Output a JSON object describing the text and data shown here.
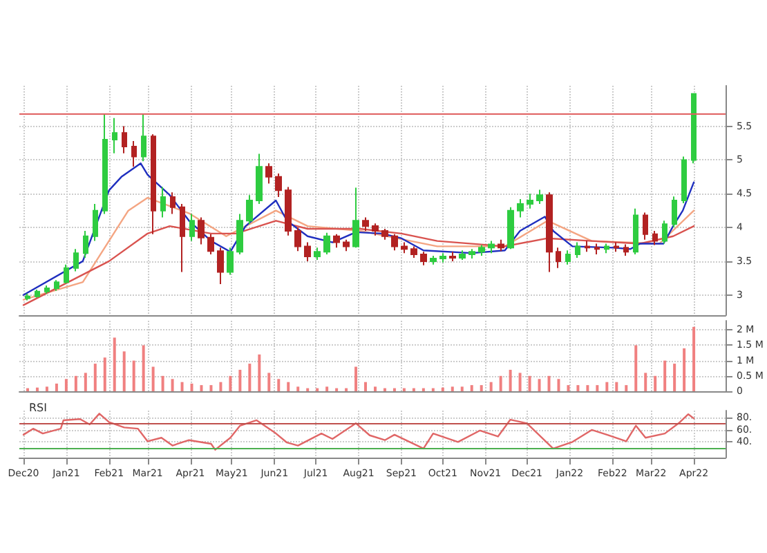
{
  "chart_data": [
    {
      "type": "candlestick",
      "xlim": [
        "2020-11-28",
        "2022-04-24"
      ],
      "ylim": [
        2.7,
        6.1
      ],
      "yticks": [
        3,
        3.5,
        4,
        4.5,
        5,
        5.5
      ],
      "tick_labels": "y",
      "grid": true,
      "marker": "none",
      "xticks": [
        {
          "value": "2020-12-01",
          "label": null
        },
        {
          "value": "2021-01-01",
          "label": null
        },
        {
          "value": "2021-02-01",
          "label": null
        },
        {
          "value": "2021-03-01",
          "label": null
        },
        {
          "value": "2021-04-01",
          "label": null
        },
        {
          "value": "2021-05-01",
          "label": null
        },
        {
          "value": "2021-06-01",
          "label": null
        },
        {
          "value": "2021-07-01",
          "label": null
        },
        {
          "value": "2021-08-01",
          "label": null
        },
        {
          "value": "2021-09-01",
          "label": null
        },
        {
          "value": "2021-10-01",
          "label": null
        },
        {
          "value": "2021-11-01",
          "label": null
        },
        {
          "value": "2021-12-01",
          "label": null
        },
        {
          "value": "2022-01-01",
          "label": null
        },
        {
          "value": "2022-02-01",
          "label": null
        },
        {
          "value": "2022-03-01",
          "label": null
        },
        {
          "value": "2022-04-01",
          "label": null
        }
      ],
      "x": [
        "2020-12-04",
        "2020-12-11",
        "2020-12-18",
        "2020-12-25",
        "2021-01-01",
        "2021-01-08",
        "2021-01-15",
        "2021-01-22",
        "2021-01-29",
        "2021-02-05",
        "2021-02-12",
        "2021-02-19",
        "2021-02-26",
        "2021-03-05",
        "2021-03-12",
        "2021-03-19",
        "2021-03-26",
        "2021-04-02",
        "2021-04-09",
        "2021-04-16",
        "2021-04-23",
        "2021-04-30",
        "2021-05-07",
        "2021-05-14",
        "2021-05-21",
        "2021-05-28",
        "2021-06-04",
        "2021-06-11",
        "2021-06-18",
        "2021-06-25",
        "2021-07-02",
        "2021-07-09",
        "2021-07-16",
        "2021-07-23",
        "2021-07-30",
        "2021-08-06",
        "2021-08-13",
        "2021-08-20",
        "2021-08-27",
        "2021-09-03",
        "2021-09-10",
        "2021-09-17",
        "2021-09-24",
        "2021-10-01",
        "2021-10-08",
        "2021-10-15",
        "2021-10-22",
        "2021-10-29",
        "2021-11-05",
        "2021-11-12",
        "2021-11-19",
        "2021-11-26",
        "2021-12-03",
        "2021-12-10",
        "2021-12-17",
        "2021-12-24",
        "2021-12-31",
        "2022-01-07",
        "2022-01-14",
        "2022-01-21",
        "2022-01-28",
        "2022-02-04",
        "2022-02-11",
        "2022-02-18",
        "2022-02-25",
        "2022-03-04",
        "2022-03-11",
        "2022-03-18",
        "2022-03-25",
        "2022-04-01"
      ],
      "ohlc": [
        [
          2.95,
          3.02,
          2.92,
          2.98
        ],
        [
          2.98,
          3.08,
          2.96,
          3.05
        ],
        [
          3.05,
          3.14,
          3.02,
          3.1
        ],
        [
          3.1,
          3.22,
          3.06,
          3.19
        ],
        [
          3.19,
          3.45,
          3.17,
          3.4
        ],
        [
          3.4,
          3.68,
          3.35,
          3.62
        ],
        [
          3.62,
          3.95,
          3.55,
          3.87
        ],
        [
          3.87,
          4.35,
          3.8,
          4.25
        ],
        [
          4.25,
          5.69,
          4.2,
          5.3
        ],
        [
          5.3,
          5.62,
          5.1,
          5.4
        ],
        [
          5.4,
          5.5,
          5.1,
          5.2
        ],
        [
          5.2,
          5.28,
          4.9,
          5.05
        ],
        [
          5.05,
          5.69,
          4.98,
          5.35
        ],
        [
          5.35,
          5.38,
          3.9,
          4.25
        ],
        [
          4.25,
          4.6,
          4.15,
          4.45
        ],
        [
          4.45,
          4.52,
          4.2,
          4.3
        ],
        [
          4.3,
          4.35,
          3.34,
          3.87
        ],
        [
          3.87,
          4.2,
          3.8,
          4.1
        ],
        [
          4.1,
          4.15,
          3.75,
          3.85
        ],
        [
          3.85,
          3.9,
          3.6,
          3.65
        ],
        [
          3.65,
          3.7,
          3.16,
          3.34
        ],
        [
          3.34,
          3.7,
          3.3,
          3.64
        ],
        [
          3.64,
          4.2,
          3.6,
          4.1
        ],
        [
          4.1,
          4.48,
          4.05,
          4.4
        ],
        [
          4.4,
          5.09,
          4.35,
          4.9
        ],
        [
          4.9,
          4.95,
          4.65,
          4.75
        ],
        [
          4.75,
          4.8,
          4.45,
          4.55
        ],
        [
          4.55,
          4.6,
          3.88,
          3.95
        ],
        [
          3.95,
          4.0,
          3.65,
          3.72
        ],
        [
          3.72,
          3.78,
          3.5,
          3.57
        ],
        [
          3.57,
          3.7,
          3.52,
          3.64
        ],
        [
          3.64,
          3.92,
          3.6,
          3.87
        ],
        [
          3.87,
          3.9,
          3.7,
          3.78
        ],
        [
          3.78,
          3.82,
          3.65,
          3.72
        ],
        [
          3.72,
          4.59,
          3.7,
          4.1
        ],
        [
          4.1,
          4.15,
          3.95,
          4.02
        ],
        [
          4.02,
          4.06,
          3.88,
          3.95
        ],
        [
          3.95,
          3.98,
          3.82,
          3.87
        ],
        [
          3.87,
          3.9,
          3.66,
          3.72
        ],
        [
          3.72,
          3.78,
          3.62,
          3.68
        ],
        [
          3.68,
          3.72,
          3.55,
          3.6
        ],
        [
          3.6,
          3.64,
          3.44,
          3.5
        ],
        [
          3.5,
          3.58,
          3.45,
          3.54
        ],
        [
          3.54,
          3.62,
          3.48,
          3.57
        ],
        [
          3.57,
          3.64,
          3.5,
          3.55
        ],
        [
          3.55,
          3.66,
          3.52,
          3.6
        ],
        [
          3.6,
          3.68,
          3.54,
          3.64
        ],
        [
          3.64,
          3.74,
          3.58,
          3.7
        ],
        [
          3.7,
          3.8,
          3.62,
          3.75
        ],
        [
          3.75,
          3.82,
          3.65,
          3.7
        ],
        [
          3.7,
          4.3,
          3.68,
          4.25
        ],
        [
          4.25,
          4.42,
          4.15,
          4.35
        ],
        [
          4.35,
          4.5,
          4.28,
          4.4
        ],
        [
          4.4,
          4.56,
          4.35,
          4.48
        ],
        [
          4.48,
          4.52,
          3.34,
          3.64
        ],
        [
          3.64,
          3.7,
          3.4,
          3.5
        ],
        [
          3.5,
          3.66,
          3.45,
          3.6
        ],
        [
          3.6,
          3.78,
          3.55,
          3.72
        ],
        [
          3.72,
          3.8,
          3.64,
          3.7
        ],
        [
          3.7,
          3.76,
          3.6,
          3.68
        ],
        [
          3.68,
          3.76,
          3.62,
          3.72
        ],
        [
          3.72,
          3.78,
          3.64,
          3.7
        ],
        [
          3.7,
          3.75,
          3.58,
          3.64
        ],
        [
          3.64,
          4.28,
          3.6,
          4.18
        ],
        [
          4.18,
          4.22,
          3.82,
          3.9
        ],
        [
          3.9,
          3.95,
          3.74,
          3.8
        ],
        [
          3.8,
          4.1,
          3.76,
          4.05
        ],
        [
          4.05,
          4.46,
          4.0,
          4.4
        ],
        [
          4.4,
          5.05,
          4.36,
          5.0
        ],
        [
          5.0,
          5.98,
          4.95,
          5.98
        ]
      ],
      "colors": [
        "#2ecc40",
        "#2ecc40",
        "#2ecc40",
        "#2ecc40",
        "#2ecc40",
        "#2ecc40",
        "#2ecc40",
        "#2ecc40",
        "#2ecc40",
        "#2ecc40",
        "#b22222",
        "#b22222",
        "#2ecc40",
        "#b22222",
        "#2ecc40",
        "#b22222",
        "#b22222",
        "#2ecc40",
        "#b22222",
        "#b22222",
        "#b22222",
        "#2ecc40",
        "#2ecc40",
        "#2ecc40",
        "#2ecc40",
        "#b22222",
        "#b22222",
        "#b22222",
        "#b22222",
        "#b22222",
        "#2ecc40",
        "#2ecc40",
        "#b22222",
        "#b22222",
        "#2ecc40",
        "#b22222",
        "#b22222",
        "#b22222",
        "#b22222",
        "#b22222",
        "#b22222",
        "#b22222",
        "#2ecc40",
        "#2ecc40",
        "#b22222",
        "#2ecc40",
        "#2ecc40",
        "#2ecc40",
        "#2ecc40",
        "#b22222",
        "#2ecc40",
        "#2ecc40",
        "#2ecc40",
        "#2ecc40",
        "#b22222",
        "#b22222",
        "#2ecc40",
        "#2ecc40",
        "#b22222",
        "#b22222",
        "#2ecc40",
        "#b22222",
        "#b22222",
        "#2ecc40",
        "#b22222",
        "#b22222",
        "#2ecc40",
        "#2ecc40",
        "#2ecc40",
        "#2ecc40"
      ],
      "ref_lines": [
        {
          "axis": "y",
          "value": 5.69,
          "color": "#e06060"
        }
      ],
      "series": [
        {
          "type": "line",
          "color": "#f4a582",
          "x": [
            "2020-12-01",
            "2021-01-13",
            "2021-02-15",
            "2021-03-01",
            "2021-03-31",
            "2021-04-27",
            "2021-06-02",
            "2021-06-25",
            "2021-08-02",
            "2021-09-27",
            "2021-11-15",
            "2021-12-16",
            "2022-01-17",
            "2022-03-07",
            "2022-04-01"
          ],
          "values": [
            2.93,
            3.19,
            4.25,
            4.44,
            4.21,
            3.87,
            4.25,
            4.02,
            3.95,
            3.72,
            3.72,
            4.1,
            3.8,
            3.76,
            4.25
          ]
        },
        {
          "type": "line",
          "color": "#d9534f",
          "x": [
            "2020-12-01",
            "2021-02-01",
            "2021-03-01",
            "2021-03-17",
            "2021-04-16",
            "2021-05-04",
            "2021-06-02",
            "2021-06-25",
            "2021-08-02",
            "2021-09-01",
            "2021-09-27",
            "2021-11-15",
            "2021-12-16",
            "2022-01-17",
            "2022-02-21",
            "2022-03-17",
            "2022-04-01"
          ],
          "values": [
            2.85,
            3.5,
            3.91,
            4.02,
            3.91,
            3.91,
            4.1,
            3.98,
            3.98,
            3.91,
            3.8,
            3.72,
            3.84,
            3.8,
            3.76,
            3.87,
            4.02
          ]
        },
        {
          "type": "line",
          "color": "#1f2fbf",
          "x": [
            "2020-12-01",
            "2021-01-13",
            "2021-02-01",
            "2021-02-10",
            "2021-02-24",
            "2021-03-01",
            "2021-03-17",
            "2021-03-31",
            "2021-04-16",
            "2021-04-30",
            "2021-05-11",
            "2021-06-02",
            "2021-06-10",
            "2021-06-25",
            "2021-07-13",
            "2021-07-30",
            "2021-08-18",
            "2021-09-01",
            "2021-09-17",
            "2021-10-22",
            "2021-11-15",
            "2021-11-26",
            "2021-12-14",
            "2021-12-20",
            "2022-01-03",
            "2022-02-02",
            "2022-02-14",
            "2022-02-21",
            "2022-03-10",
            "2022-03-17",
            "2022-03-24",
            "2022-04-01"
          ],
          "values": [
            3.0,
            3.5,
            4.55,
            4.75,
            4.95,
            4.78,
            4.48,
            4.1,
            3.8,
            3.64,
            4.02,
            4.4,
            4.1,
            3.87,
            3.78,
            3.93,
            3.91,
            3.84,
            3.66,
            3.62,
            3.66,
            3.95,
            4.16,
            3.95,
            3.72,
            3.7,
            3.68,
            3.76,
            3.76,
            4.02,
            4.25,
            4.67
          ]
        }
      ]
    },
    {
      "type": "bar",
      "xlim": [
        "2020-11-28",
        "2022-04-24"
      ],
      "ylim": [
        0,
        2.3
      ],
      "yticks": [
        0,
        {
          "value": 0.5,
          "label": "0.5 M"
        },
        {
          "value": 1,
          "label": "1 M"
        },
        {
          "value": 1.5,
          "label": "1.5 M"
        },
        {
          "value": 2,
          "label": "2 M"
        }
      ],
      "tick_labels": "y",
      "grid": true,
      "color": "#f08080",
      "xticks": [
        {
          "value": "2020-12-01",
          "label": null
        },
        {
          "value": "2021-01-01",
          "label": null
        },
        {
          "value": "2021-02-01",
          "label": null
        },
        {
          "value": "2021-03-01",
          "label": null
        },
        {
          "value": "2021-04-01",
          "label": null
        },
        {
          "value": "2021-05-01",
          "label": null
        },
        {
          "value": "2021-06-01",
          "label": null
        },
        {
          "value": "2021-07-01",
          "label": null
        },
        {
          "value": "2021-08-01",
          "label": null
        },
        {
          "value": "2021-09-01",
          "label": null
        },
        {
          "value": "2021-10-01",
          "label": null
        },
        {
          "value": "2021-11-01",
          "label": null
        },
        {
          "value": "2021-12-01",
          "label": null
        },
        {
          "value": "2022-01-01",
          "label": null
        },
        {
          "value": "2022-02-01",
          "label": null
        },
        {
          "value": "2022-03-01",
          "label": null
        },
        {
          "value": "2022-04-01",
          "label": null
        }
      ],
      "x": [
        "2020-12-04",
        "2020-12-11",
        "2020-12-18",
        "2020-12-25",
        "2021-01-01",
        "2021-01-08",
        "2021-01-15",
        "2021-01-22",
        "2021-01-29",
        "2021-02-05",
        "2021-02-12",
        "2021-02-19",
        "2021-02-26",
        "2021-03-05",
        "2021-03-12",
        "2021-03-19",
        "2021-03-26",
        "2021-04-02",
        "2021-04-09",
        "2021-04-16",
        "2021-04-23",
        "2021-04-30",
        "2021-05-07",
        "2021-05-14",
        "2021-05-21",
        "2021-05-28",
        "2021-06-04",
        "2021-06-11",
        "2021-06-18",
        "2021-06-25",
        "2021-07-02",
        "2021-07-09",
        "2021-07-16",
        "2021-07-23",
        "2021-07-30",
        "2021-08-06",
        "2021-08-13",
        "2021-08-20",
        "2021-08-27",
        "2021-09-03",
        "2021-09-10",
        "2021-09-17",
        "2021-09-24",
        "2021-10-01",
        "2021-10-08",
        "2021-10-15",
        "2021-10-22",
        "2021-10-29",
        "2021-11-05",
        "2021-11-12",
        "2021-11-19",
        "2021-11-26",
        "2021-12-03",
        "2021-12-10",
        "2021-12-17",
        "2021-12-24",
        "2021-12-31",
        "2022-01-07",
        "2022-01-14",
        "2022-01-21",
        "2022-01-28",
        "2022-02-04",
        "2022-02-11",
        "2022-02-18",
        "2022-02-25",
        "2022-03-04",
        "2022-03-11",
        "2022-03-18",
        "2022-03-25",
        "2022-04-01"
      ],
      "values": [
        0.1,
        0.12,
        0.15,
        0.25,
        0.4,
        0.5,
        0.6,
        0.9,
        1.1,
        1.75,
        1.3,
        1.0,
        1.5,
        0.8,
        0.5,
        0.4,
        0.3,
        0.25,
        0.2,
        0.2,
        0.3,
        0.5,
        0.7,
        0.9,
        1.2,
        0.6,
        0.4,
        0.3,
        0.15,
        0.1,
        0.1,
        0.15,
        0.1,
        0.1,
        0.8,
        0.3,
        0.15,
        0.1,
        0.1,
        0.1,
        0.1,
        0.1,
        0.1,
        0.12,
        0.15,
        0.15,
        0.2,
        0.2,
        0.3,
        0.5,
        0.7,
        0.6,
        0.5,
        0.4,
        0.5,
        0.4,
        0.2,
        0.2,
        0.2,
        0.2,
        0.3,
        0.3,
        0.2,
        1.5,
        0.6,
        0.5,
        1.0,
        0.9,
        1.4,
        2.1
      ]
    },
    {
      "type": "line",
      "title": "RSI",
      "xlim": [
        "2020-11-28",
        "2022-04-24"
      ],
      "ylim": [
        14,
        92
      ],
      "yticks": [
        {
          "value": 40,
          "label": "40."
        },
        {
          "value": 60,
          "label": "60."
        },
        {
          "value": 80,
          "label": "80."
        }
      ],
      "grid": true,
      "marker": "none",
      "color": "#e06666",
      "xticks": [
        {
          "value": "2020-12-01",
          "label": "Dec20"
        },
        {
          "value": "2021-01-01",
          "label": "Jan21"
        },
        {
          "value": "2021-02-01",
          "label": "Feb21"
        },
        {
          "value": "2021-03-01",
          "label": "Mar21"
        },
        {
          "value": "2021-04-01",
          "label": "Apr21"
        },
        {
          "value": "2021-05-01",
          "label": "May21"
        },
        {
          "value": "2021-06-01",
          "label": "Jun21"
        },
        {
          "value": "2021-07-01",
          "label": "Jul21"
        },
        {
          "value": "2021-08-01",
          "label": "Aug21"
        },
        {
          "value": "2021-09-01",
          "label": "Sep21"
        },
        {
          "value": "2021-10-01",
          "label": "Oct21"
        },
        {
          "value": "2021-11-01",
          "label": "Nov21"
        },
        {
          "value": "2021-12-01",
          "label": "Dec21"
        },
        {
          "value": "2022-01-01",
          "label": "Jan22"
        },
        {
          "value": "2022-02-01",
          "label": "Feb22"
        },
        {
          "value": "2022-03-01",
          "label": "Mar22"
        },
        {
          "value": "2022-04-01",
          "label": "Apr22"
        }
      ],
      "ref_lines": [
        {
          "axis": "y",
          "value": 70,
          "color": "#c0504d"
        },
        {
          "axis": "y",
          "value": 30,
          "color": "#4caf50"
        }
      ],
      "x": [
        "2020-12-01",
        "2020-12-08",
        "2020-12-15",
        "2020-12-28",
        "2020-12-30",
        "2021-01-11",
        "2021-01-18",
        "2021-01-25",
        "2021-02-01",
        "2021-02-12",
        "2021-02-22",
        "2021-03-01",
        "2021-03-11",
        "2021-03-19",
        "2021-03-31",
        "2021-04-16",
        "2021-04-19",
        "2021-04-30",
        "2021-05-07",
        "2021-05-19",
        "2021-06-01",
        "2021-06-10",
        "2021-06-18",
        "2021-07-05",
        "2021-07-13",
        "2021-07-30",
        "2021-08-09",
        "2021-08-20",
        "2021-08-27",
        "2021-09-17",
        "2021-09-24",
        "2021-10-12",
        "2021-10-28",
        "2021-11-10",
        "2021-11-19",
        "2021-12-01",
        "2021-12-20",
        "2022-01-03",
        "2022-01-17",
        "2022-01-28",
        "2022-02-11",
        "2022-02-18",
        "2022-02-25",
        "2022-03-11",
        "2022-03-21",
        "2022-03-28",
        "2022-04-01"
      ],
      "values": [
        52,
        62,
        54,
        62,
        76,
        78,
        69,
        87,
        73,
        64,
        62,
        41,
        47,
        34,
        43,
        37,
        27,
        47,
        67,
        76,
        56,
        39,
        34,
        54,
        45,
        71,
        51,
        43,
        52,
        29,
        54,
        40,
        59,
        49,
        77,
        71,
        29,
        40,
        60,
        52,
        41,
        67,
        47,
        54,
        71,
        86,
        79
      ]
    }
  ]
}
